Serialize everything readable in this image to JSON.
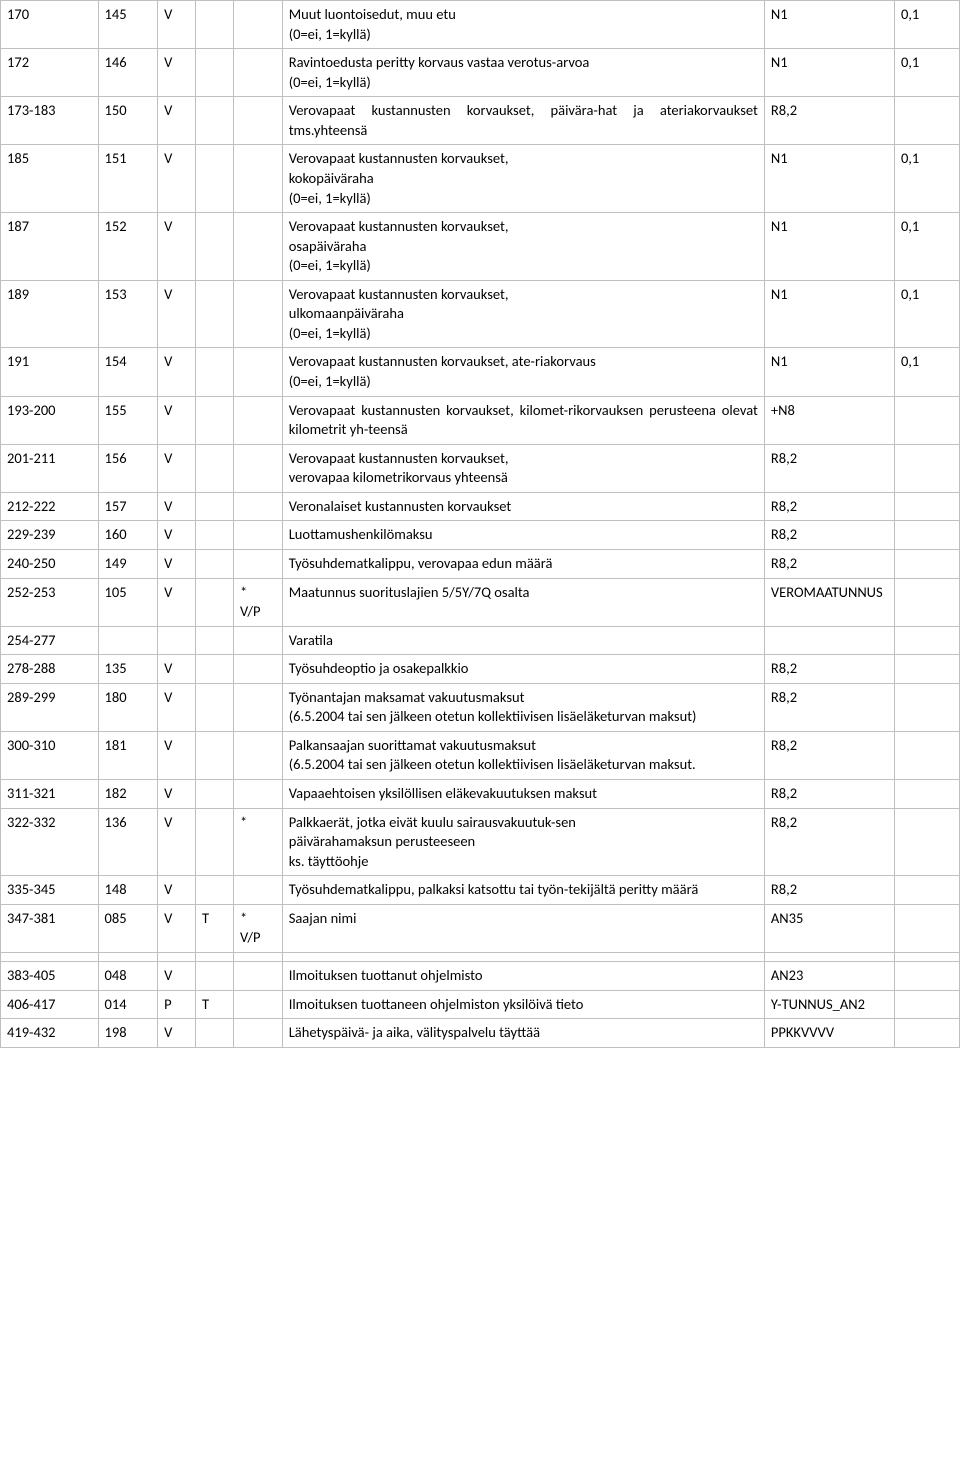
{
  "rows": [
    {
      "c1": "170",
      "c2": "145",
      "c3": "V",
      "c4": "",
      "c5": "",
      "c6": "Muut luontoisedut, muu etu\n(0=ei, 1=kyllä)",
      "c7": "N1",
      "c8": "0,1",
      "j": false
    },
    {
      "c1": "172",
      "c2": "146",
      "c3": "V",
      "c4": "",
      "c5": "",
      "c6": "Ravintoedusta peritty korvaus vastaa verotus-arvoa\n(0=ei, 1=kyllä)",
      "c7": "N1",
      "c8": "0,1",
      "j": true
    },
    {
      "c1": "173-183",
      "c2": "150",
      "c3": "V",
      "c4": "",
      "c5": "",
      "c6": "Verovapaat kustannusten korvaukset, päivära-hat ja ateriakorvaukset tms.yhteensä",
      "c7": "R8,2",
      "c8": "",
      "j": true
    },
    {
      "c1": "185",
      "c2": "151",
      "c3": "V",
      "c4": "",
      "c5": "",
      "c6": "Verovapaat kustannusten korvaukset,\nkokopäiväraha\n(0=ei, 1=kyllä)",
      "c7": "N1",
      "c8": "0,1",
      "j": false
    },
    {
      "c1": "187",
      "c2": "152",
      "c3": "V",
      "c4": "",
      "c5": "",
      "c6": "Verovapaat kustannusten korvaukset,\nosapäiväraha\n(0=ei, 1=kyllä)",
      "c7": "N1",
      "c8": "0,1",
      "j": false
    },
    {
      "c1": "189",
      "c2": "153",
      "c3": "V",
      "c4": "",
      "c5": "",
      "c6": "Verovapaat kustannusten korvaukset,\nulkomaanpäiväraha\n(0=ei, 1=kyllä)",
      "c7": "N1",
      "c8": "0,1",
      "j": false
    },
    {
      "c1": "191",
      "c2": "154",
      "c3": "V",
      "c4": "",
      "c5": "",
      "c6": "Verovapaat kustannusten korvaukset, ate-riakorvaus\n(0=ei, 1=kyllä)",
      "c7": "N1",
      "c8": "0,1",
      "j": true
    },
    {
      "c1": "193-200",
      "c2": "155",
      "c3": "V",
      "c4": "",
      "c5": "",
      "c6": "Verovapaat kustannusten korvaukset, kilomet-rikorvauksen perusteena olevat kilometrit yh-teensä",
      "c7": "+N8",
      "c8": "",
      "j": true
    },
    {
      "c1": "201-211",
      "c2": "156",
      "c3": "V",
      "c4": "",
      "c5": "",
      "c6": "Verovapaat kustannusten korvaukset,\nverovapaa kilometrikorvaus yhteensä",
      "c7": "R8,2",
      "c8": "",
      "j": false
    },
    {
      "c1": "212-222",
      "c2": "157",
      "c3": "V",
      "c4": "",
      "c5": "",
      "c6": "Veronalaiset kustannusten korvaukset",
      "c7": "R8,2",
      "c8": "",
      "j": false
    },
    {
      "c1": "229-239",
      "c2": "160",
      "c3": "V",
      "c4": "",
      "c5": "",
      "c6": "Luottamushenkilömaksu",
      "c7": "R8,2",
      "c8": "",
      "j": false
    },
    {
      "c1": "240-250",
      "c2": "149",
      "c3": "V",
      "c4": "",
      "c5": "",
      "c6": "Työsuhdematkalippu, verovapaa edun määrä",
      "c7": "R8,2",
      "c8": "",
      "j": false
    },
    {
      "c1": "252-253",
      "c2": "105",
      "c3": "V",
      "c4": "",
      "c5": "*\nV/P",
      "c6": "Maatunnus suorituslajien 5/5Y/7Q osalta",
      "c7": "VEROMAATUNNUS",
      "c8": "",
      "j": false
    },
    {
      "c1": "254-277",
      "c2": "",
      "c3": "",
      "c4": "",
      "c5": "",
      "c6": "Varatila",
      "c7": "",
      "c8": "",
      "j": false
    },
    {
      "c1": "278-288",
      "c2": "135",
      "c3": "V",
      "c4": "",
      "c5": "",
      "c6": "Työsuhdeoptio ja osakepalkkio",
      "c7": "R8,2",
      "c8": "",
      "j": false
    },
    {
      "c1": "289-299",
      "c2": "180",
      "c3": "V",
      "c4": "",
      "c5": "",
      "c6": "Työnantajan maksamat vakuutusmaksut\n(6.5.2004 tai sen jälkeen otetun kollektiivisen lisäeläketurvan maksut)",
      "c7": "R8,2",
      "c8": "",
      "j": true
    },
    {
      "c1": "300-310",
      "c2": "181",
      "c3": "V",
      "c4": "",
      "c5": "",
      "c6": "Palkansaajan suorittamat vakuutusmaksut\n(6.5.2004 tai sen jälkeen otetun kollektiivisen lisäeläketurvan maksut.",
      "c7": "R8,2",
      "c8": "",
      "j": false
    },
    {
      "c1": "311-321",
      "c2": "182",
      "c3": "V",
      "c4": "",
      "c5": "",
      "c6": "Vapaaehtoisen yksilöllisen eläkevakuutuksen maksut",
      "c7": "R8,2",
      "c8": "",
      "j": false
    },
    {
      "c1": "322-332",
      "c2": "136",
      "c3": "V",
      "c4": "",
      "c5": "*",
      "c6": "Palkkaerät, jotka eivät kuulu sairausvakuutuk-sen\npäivärahamaksun perusteeseen\nks. täyttöohje",
      "c7": "R8,2",
      "c8": "",
      "j": true
    },
    {
      "c1": "335-345",
      "c2": "148",
      "c3": "V",
      "c4": "",
      "c5": "",
      "c6": "Työsuhdematkalippu, palkaksi katsottu tai työn-tekijältä peritty määrä",
      "c7": "R8,2",
      "c8": "",
      "j": true
    },
    {
      "c1": "347-381",
      "c2": "085",
      "c3": "V",
      "c4": "T",
      "c5": "*\nV/P",
      "c6": "Saajan nimi",
      "c7": "AN35",
      "c8": "",
      "j": false
    },
    {
      "c1": "",
      "c2": "",
      "c3": "",
      "c4": "",
      "c5": "",
      "c6": "",
      "c7": "",
      "c8": "",
      "j": false
    },
    {
      "c1": "383-405",
      "c2": "048",
      "c3": "V",
      "c4": "",
      "c5": "",
      "c6": "Ilmoituksen tuottanut ohjelmisto",
      "c7": "AN23",
      "c8": "",
      "j": false
    },
    {
      "c1": "406-417",
      "c2": "014",
      "c3": "P",
      "c4": "T",
      "c5": "",
      "c6": "Ilmoituksen tuottaneen ohjelmiston yksilöivä tieto",
      "c7": "Y-TUNNUS_AN2",
      "c8": "",
      "j": true
    },
    {
      "c1": "419-432",
      "c2": "198",
      "c3": "V",
      "c4": "",
      "c5": "",
      "c6": "Lähetyspäivä- ja aika, välityspalvelu täyttää",
      "c7": "PPKKVVVV",
      "c8": "",
      "j": false
    }
  ]
}
